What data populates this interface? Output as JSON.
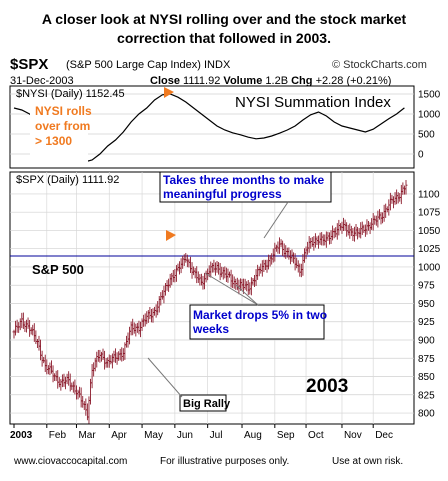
{
  "headline": "A closer look at NYSI rolling over and the stock market\ncorrection that followed in 2003.",
  "header": {
    "ticker": "$SPX",
    "description": "(S&P 500 Large Cap Index) INDX",
    "brand": "© StockCharts.com",
    "date": "31-Dec-2003",
    "close_label": "Close",
    "close_value": "1111.92",
    "volume_label": "Volume",
    "volume_value": "1.2B",
    "change_label": "Chg",
    "change_value": "+2.28 (+0.21%)"
  },
  "colors": {
    "accent_orange": "#f07a20",
    "annotation_blue": "#0000cc",
    "hline": "#000099",
    "price_bars": "#8b1a2b"
  },
  "chart_data": [
    {
      "type": "line",
      "legend": "$NYSI (Daily) 1152.45",
      "title": "NYSI Summation Index",
      "ylim": [
        -350,
        1700
      ],
      "ytick_labels": [
        "1500",
        "1000",
        "500",
        "0"
      ],
      "yticks": [
        1500,
        1000,
        500,
        0
      ],
      "x": [
        0,
        5,
        10,
        15,
        20,
        25,
        30,
        35,
        40,
        45,
        50,
        55,
        60,
        65,
        70,
        75,
        80,
        85,
        90,
        95,
        100,
        105,
        110,
        115,
        120,
        125,
        130,
        135,
        140,
        145,
        150,
        155,
        160,
        165,
        170,
        175,
        180,
        185,
        190,
        195,
        200,
        205,
        210,
        215,
        220,
        225,
        230,
        235,
        240,
        245,
        250
      ],
      "values": [
        1150,
        1100,
        1000,
        850,
        600,
        300,
        100,
        -50,
        -150,
        -200,
        -150,
        0,
        200,
        350,
        550,
        800,
        1000,
        1150,
        1350,
        1480,
        1500,
        1420,
        1300,
        1150,
        1000,
        850,
        700,
        600,
        530,
        480,
        420,
        380,
        400,
        450,
        520,
        600,
        700,
        850,
        980,
        1050,
        950,
        800,
        700,
        650,
        600,
        550,
        620,
        750,
        880,
        1000,
        1152
      ]
    },
    {
      "type": "ohlc",
      "legend": "$SPX (Daily) 1111.92",
      "ylim": [
        785,
        1130
      ],
      "ytick_labels": [
        "1100",
        "1075",
        "1050",
        "1025",
        "1000",
        "975",
        "950",
        "925",
        "900",
        "875",
        "850",
        "825",
        "800"
      ],
      "yticks": [
        1100,
        1075,
        1050,
        1025,
        1000,
        975,
        950,
        925,
        900,
        875,
        850,
        825,
        800
      ],
      "x_months": [
        "2003",
        "Feb",
        "Mar",
        "Apr",
        "May",
        "Jun",
        "Jul",
        "Aug",
        "Sep",
        "Oct",
        "Nov",
        "Dec"
      ],
      "month_start_day": [
        0,
        21,
        40,
        61,
        82,
        103,
        124,
        146,
        167,
        187,
        210,
        230
      ],
      "n_days": 252,
      "close_anchors": [
        {
          "day": 0,
          "close": 909
        },
        {
          "day": 5,
          "close": 928
        },
        {
          "day": 10,
          "close": 915
        },
        {
          "day": 15,
          "close": 898
        },
        {
          "day": 20,
          "close": 862
        },
        {
          "day": 25,
          "close": 855
        },
        {
          "day": 30,
          "close": 840
        },
        {
          "day": 35,
          "close": 845
        },
        {
          "day": 40,
          "close": 830
        },
        {
          "day": 45,
          "close": 808
        },
        {
          "day": 47,
          "close": 800
        },
        {
          "day": 50,
          "close": 860
        },
        {
          "day": 55,
          "close": 880
        },
        {
          "day": 60,
          "close": 870
        },
        {
          "day": 65,
          "close": 875
        },
        {
          "day": 70,
          "close": 885
        },
        {
          "day": 75,
          "close": 915
        },
        {
          "day": 80,
          "close": 918
        },
        {
          "day": 85,
          "close": 930
        },
        {
          "day": 90,
          "close": 940
        },
        {
          "day": 95,
          "close": 960
        },
        {
          "day": 100,
          "close": 985
        },
        {
          "day": 105,
          "close": 995
        },
        {
          "day": 110,
          "close": 1015
        },
        {
          "day": 115,
          "close": 990
        },
        {
          "day": 120,
          "close": 980
        },
        {
          "day": 125,
          "close": 995
        },
        {
          "day": 130,
          "close": 1000
        },
        {
          "day": 135,
          "close": 990
        },
        {
          "day": 140,
          "close": 980
        },
        {
          "day": 145,
          "close": 975
        },
        {
          "day": 150,
          "close": 970
        },
        {
          "day": 155,
          "close": 990
        },
        {
          "day": 160,
          "close": 1000
        },
        {
          "day": 165,
          "close": 1015
        },
        {
          "day": 170,
          "close": 1030
        },
        {
          "day": 175,
          "close": 1020
        },
        {
          "day": 180,
          "close": 1005
        },
        {
          "day": 183,
          "close": 995
        },
        {
          "day": 187,
          "close": 1025
        },
        {
          "day": 195,
          "close": 1040
        },
        {
          "day": 200,
          "close": 1035
        },
        {
          "day": 205,
          "close": 1050
        },
        {
          "day": 210,
          "close": 1055
        },
        {
          "day": 215,
          "close": 1050
        },
        {
          "day": 220,
          "close": 1045
        },
        {
          "day": 225,
          "close": 1055
        },
        {
          "day": 230,
          "close": 1060
        },
        {
          "day": 235,
          "close": 1070
        },
        {
          "day": 240,
          "close": 1085
        },
        {
          "day": 245,
          "close": 1095
        },
        {
          "day": 251,
          "close": 1112
        }
      ],
      "reference_level": 1015
    }
  ],
  "annotations": {
    "nysi_rolls": "NYSI rolls over from > 1300",
    "panel_sp500": "S&P 500",
    "three_months": "Takes three months to make meaningful progress",
    "market_drops": "Market drops 5% in two weeks",
    "big_rally": "Big Rally",
    "year_label": "2003"
  },
  "footer": {
    "site": "www.ciovaccocapital.com",
    "note": "For illustrative purposes only.",
    "risk": "Use at own risk."
  }
}
